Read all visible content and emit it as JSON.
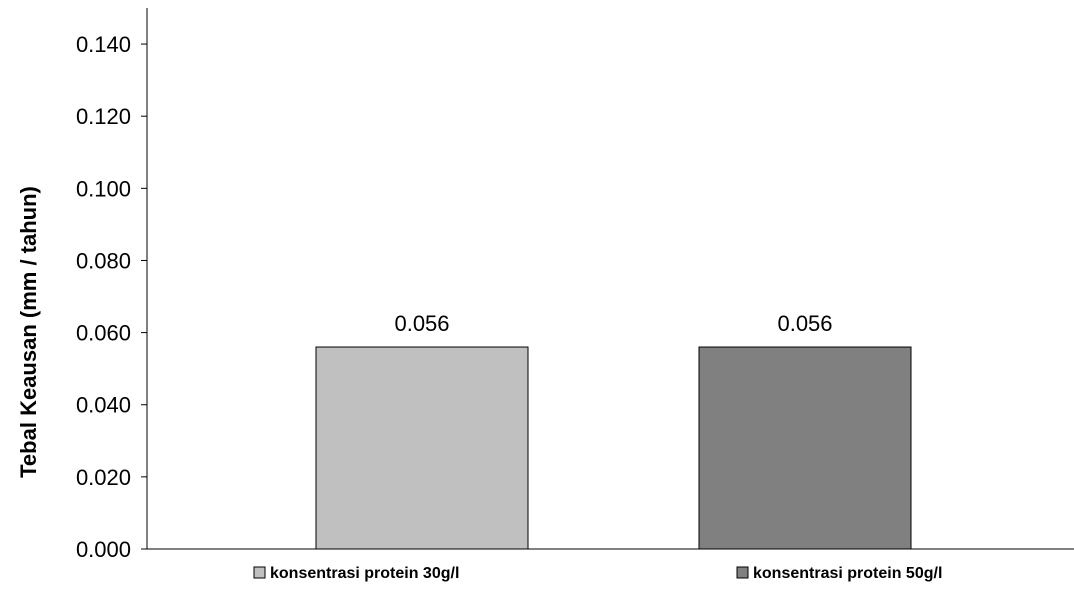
{
  "chart_data": {
    "type": "bar",
    "title": "",
    "xlabel": "",
    "ylabel": "Tebal Keausan (mm / tahun)",
    "ylim": [
      0,
      0.15
    ],
    "yticks": [
      "0.000",
      "0.020",
      "0.040",
      "0.060",
      "0.080",
      "0.100",
      "0.120",
      "0.140"
    ],
    "grid": false,
    "legend_position": "bottom",
    "series": [
      {
        "name": "konsentrasi protein 30g/l",
        "value": 0.056,
        "label": "0.056",
        "color": "#c0c0c0"
      },
      {
        "name": "konsentrasi protein 50g/l",
        "value": 0.056,
        "label": "0.056",
        "color": "#808080"
      }
    ]
  }
}
